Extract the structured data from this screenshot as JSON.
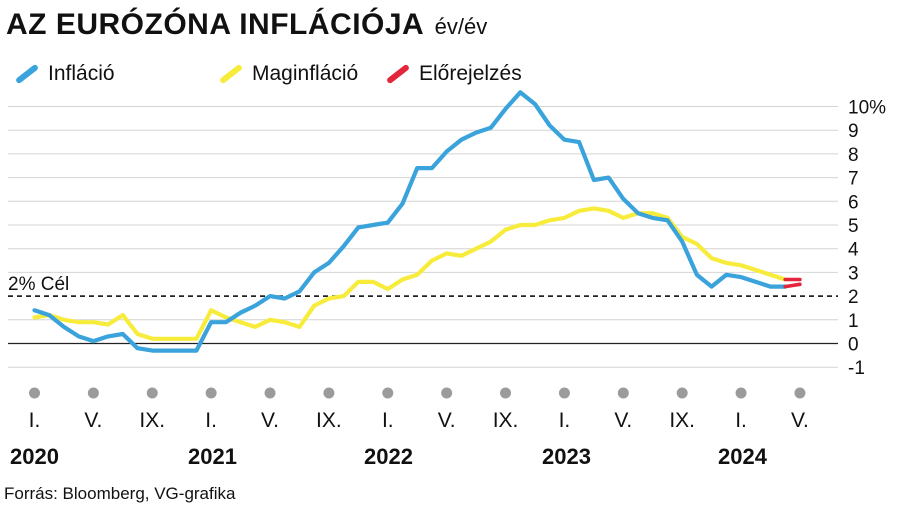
{
  "title": "AZ EURÓZÓNA INFLÁCIÓJA",
  "subtitle": "év/év",
  "source": "Forrás: Bloomberg, VG-grafika",
  "colors": {
    "inflation": "#3aa3dc",
    "core": "#f7ec3c",
    "forecast": "#e4263b",
    "grid": "#d4d4d4",
    "axis": "#222222",
    "dot": "#9b9b9b"
  },
  "chart_data": {
    "type": "line",
    "legend": [
      "Infláció",
      "Maginfláció",
      "Előrejelzés"
    ],
    "legend_position": "top-left",
    "grid": true,
    "y_ticks": [
      "10%",
      "9",
      "8",
      "7",
      "6",
      "5",
      "4",
      "3",
      "2",
      "1",
      "0",
      "-1"
    ],
    "y_tick_values": [
      10,
      9,
      8,
      7,
      6,
      5,
      4,
      3,
      2,
      1,
      0,
      -1
    ],
    "ylim": [
      -1,
      10.5
    ],
    "x_tick_labels": [
      "I.",
      "V.",
      "IX.",
      "I.",
      "V.",
      "IX.",
      "I.",
      "V.",
      "IX.",
      "I.",
      "V.",
      "IX.",
      "I.",
      "V."
    ],
    "x_tick_months": [
      "2020-01",
      "2020-05",
      "2020-09",
      "2021-01",
      "2021-05",
      "2021-09",
      "2022-01",
      "2022-05",
      "2022-09",
      "2023-01",
      "2023-05",
      "2023-09",
      "2024-01",
      "2024-05"
    ],
    "years": [
      "2020",
      "2021",
      "2022",
      "2023",
      "2024"
    ],
    "target": {
      "value": 2,
      "label": "2%  Cél"
    },
    "series": [
      {
        "name": "Infláció",
        "x": [
          "2020-01",
          "2020-02",
          "2020-03",
          "2020-04",
          "2020-05",
          "2020-06",
          "2020-07",
          "2020-08",
          "2020-09",
          "2020-10",
          "2020-11",
          "2020-12",
          "2021-01",
          "2021-02",
          "2021-03",
          "2021-04",
          "2021-05",
          "2021-06",
          "2021-07",
          "2021-08",
          "2021-09",
          "2021-10",
          "2021-11",
          "2021-12",
          "2022-01",
          "2022-02",
          "2022-03",
          "2022-04",
          "2022-05",
          "2022-06",
          "2022-07",
          "2022-08",
          "2022-09",
          "2022-10",
          "2022-11",
          "2022-12",
          "2023-01",
          "2023-02",
          "2023-03",
          "2023-04",
          "2023-05",
          "2023-06",
          "2023-07",
          "2023-08",
          "2023-09",
          "2023-10",
          "2023-11",
          "2023-12",
          "2024-01",
          "2024-02",
          "2024-03",
          "2024-04"
        ],
        "values": [
          1.4,
          1.2,
          0.7,
          0.3,
          0.1,
          0.3,
          0.4,
          -0.2,
          -0.3,
          -0.3,
          -0.3,
          -0.3,
          0.9,
          0.9,
          1.3,
          1.6,
          2.0,
          1.9,
          2.2,
          3.0,
          3.4,
          4.1,
          4.9,
          5.0,
          5.1,
          5.9,
          7.4,
          7.4,
          8.1,
          8.6,
          8.9,
          9.1,
          9.9,
          10.6,
          10.1,
          9.2,
          8.6,
          8.5,
          6.9,
          7.0,
          6.1,
          5.5,
          5.3,
          5.2,
          4.3,
          2.9,
          2.4,
          2.9,
          2.8,
          2.6,
          2.4,
          2.4
        ]
      },
      {
        "name": "Maginfláció",
        "x": [
          "2020-01",
          "2020-02",
          "2020-03",
          "2020-04",
          "2020-05",
          "2020-06",
          "2020-07",
          "2020-08",
          "2020-09",
          "2020-10",
          "2020-11",
          "2020-12",
          "2021-01",
          "2021-02",
          "2021-03",
          "2021-04",
          "2021-05",
          "2021-06",
          "2021-07",
          "2021-08",
          "2021-09",
          "2021-10",
          "2021-11",
          "2021-12",
          "2022-01",
          "2022-02",
          "2022-03",
          "2022-04",
          "2022-05",
          "2022-06",
          "2022-07",
          "2022-08",
          "2022-09",
          "2022-10",
          "2022-11",
          "2022-12",
          "2023-01",
          "2023-02",
          "2023-03",
          "2023-04",
          "2023-05",
          "2023-06",
          "2023-07",
          "2023-08",
          "2023-09",
          "2023-10",
          "2023-11",
          "2023-12",
          "2024-01",
          "2024-02",
          "2024-03",
          "2024-04"
        ],
        "values": [
          1.1,
          1.2,
          1.0,
          0.9,
          0.9,
          0.8,
          1.2,
          0.4,
          0.2,
          0.2,
          0.2,
          0.2,
          1.4,
          1.1,
          0.9,
          0.7,
          1.0,
          0.9,
          0.7,
          1.6,
          1.9,
          2.0,
          2.6,
          2.6,
          2.3,
          2.7,
          2.9,
          3.5,
          3.8,
          3.7,
          4.0,
          4.3,
          4.8,
          5.0,
          5.0,
          5.2,
          5.3,
          5.6,
          5.7,
          5.6,
          5.3,
          5.5,
          5.5,
          5.3,
          4.5,
          4.2,
          3.6,
          3.4,
          3.3,
          3.1,
          2.9,
          2.7
        ]
      },
      {
        "name": "Előrejelzés",
        "x": [
          "2024-04",
          "2024-05"
        ],
        "values": [
          2.7,
          2.7
        ]
      },
      {
        "name": "Előrejelzés",
        "x": [
          "2024-04",
          "2024-05"
        ],
        "values": [
          2.4,
          2.5
        ]
      }
    ]
  }
}
